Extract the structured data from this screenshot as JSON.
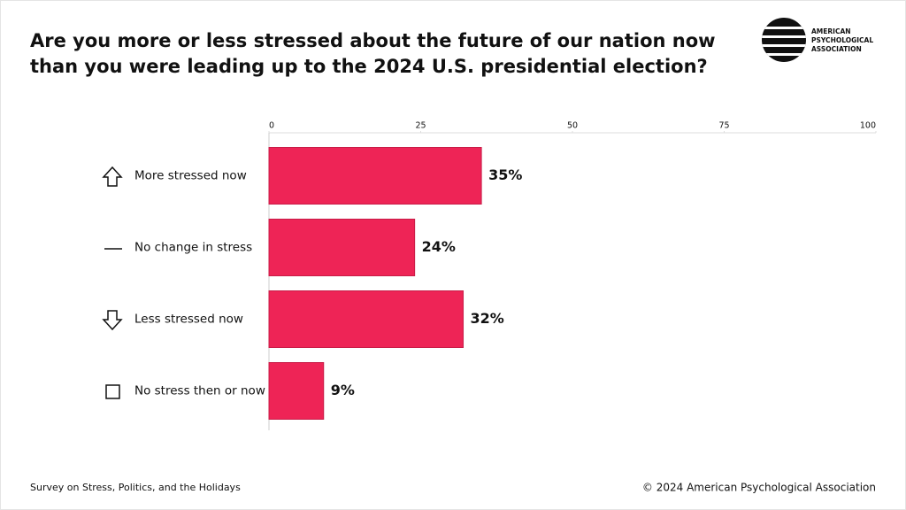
{
  "chart_data": {
    "type": "bar",
    "orientation": "horizontal",
    "title": [
      "Are you more or less stressed about the future of our nation now",
      "than you were leading up to the 2024 U.S. presidential election?"
    ],
    "categories": [
      "More stressed now",
      "No change in stress",
      "Less stressed now",
      "No stress then or now"
    ],
    "values": [
      35,
      24,
      32,
      9
    ],
    "value_labels": [
      "35%",
      "24%",
      "32%",
      "9%"
    ],
    "color": "#ee2456",
    "xlim": [
      0,
      100
    ],
    "xticks": [
      0,
      25,
      50,
      75,
      100
    ],
    "source": "Survey on Stress, Politics, and the Holidays",
    "copyright": "© 2024 American Psychological Association",
    "logo": [
      "AMERICAN",
      "PSYCHOLOGICAL",
      "ASSOCIATION"
    ]
  }
}
